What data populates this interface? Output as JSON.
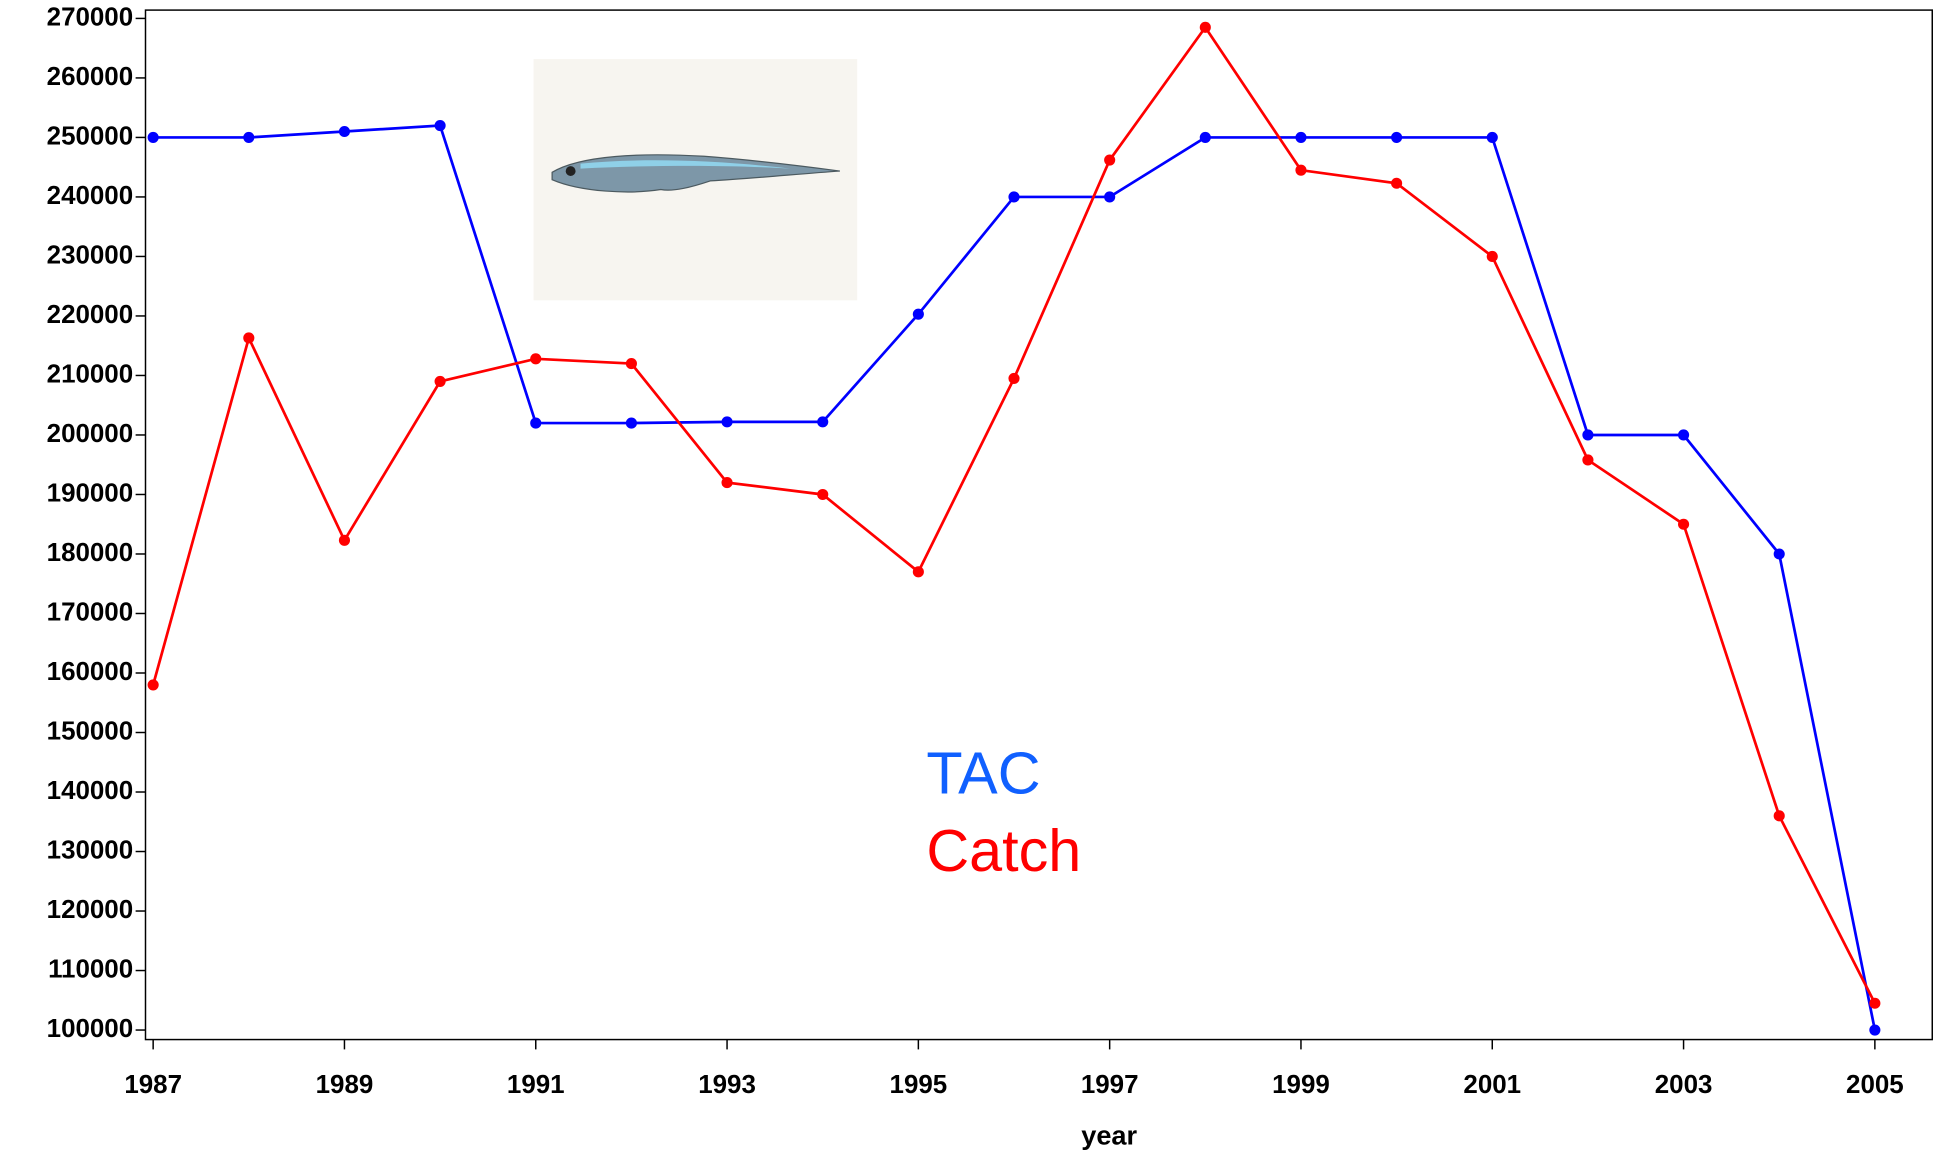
{
  "chart_data": {
    "type": "line",
    "x_label": "year",
    "x": [
      1987,
      1988,
      1989,
      1990,
      1991,
      1992,
      1993,
      1994,
      1995,
      1996,
      1997,
      1998,
      1999,
      2000,
      2001,
      2002,
      2003,
      2004,
      2005
    ],
    "series": [
      {
        "name": "TAC",
        "color": "#0000ff",
        "values": [
          250000,
          250000,
          251000,
          252000,
          202000,
          202000,
          202200,
          202200,
          220300,
          240000,
          240000,
          250000,
          250000,
          250000,
          250000,
          200000,
          200000,
          180000,
          100000
        ]
      },
      {
        "name": "Catch",
        "color": "#ff0000",
        "values": [
          158000,
          216300,
          182300,
          209000,
          212800,
          212000,
          192000,
          190000,
          177000,
          209500,
          246200,
          268500,
          244500,
          242300,
          230000,
          195800,
          185000,
          136000,
          104500
        ]
      }
    ],
    "xlim": [
      1986.92,
      2005.6
    ],
    "ylim": [
      98400,
      271400
    ],
    "xticks": [
      1987,
      1989,
      1991,
      1993,
      1995,
      1997,
      1999,
      2001,
      2003,
      2005
    ],
    "yticks": [
      100000,
      110000,
      120000,
      130000,
      140000,
      150000,
      160000,
      170000,
      180000,
      190000,
      200000,
      210000,
      220000,
      230000,
      240000,
      250000,
      260000,
      270000
    ]
  }
}
